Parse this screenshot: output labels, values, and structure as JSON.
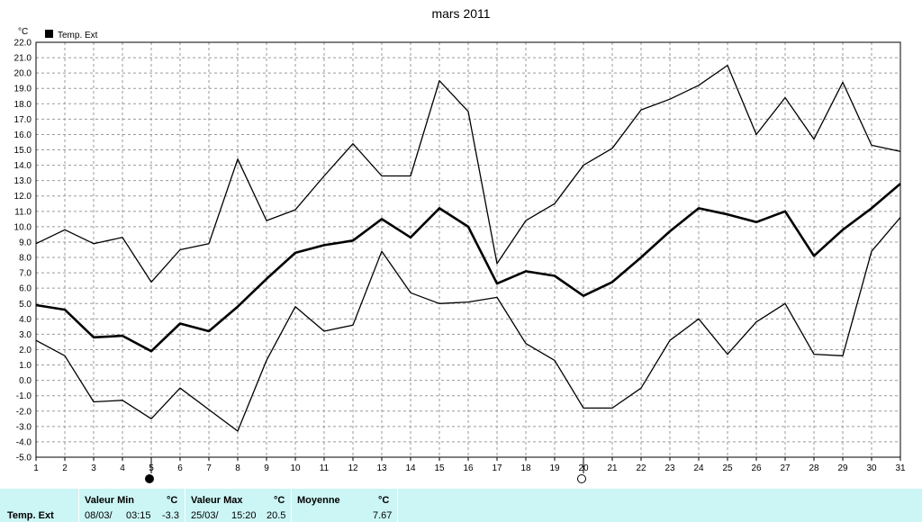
{
  "chart_data": {
    "type": "line",
    "title": "mars 2011",
    "unit_label": "°C",
    "legend": {
      "label": "Temp. Ext",
      "color": "#000000",
      "placement": "top-left"
    },
    "grid": true,
    "ylim": [
      -5.0,
      22.0
    ],
    "y_ticks": [
      "22.0",
      "21.0",
      "20.0",
      "19.0",
      "18.0",
      "17.0",
      "16.0",
      "15.0",
      "14.0",
      "13.0",
      "12.0",
      "11.0",
      "10.0",
      "9.0",
      "8.0",
      "7.0",
      "6.0",
      "5.0",
      "4.0",
      "3.0",
      "2.0",
      "1.0",
      "0.0",
      "-1.0",
      "-2.0",
      "-3.0",
      "-4.0",
      "-5.0"
    ],
    "x": [
      1,
      2,
      3,
      4,
      5,
      6,
      7,
      8,
      9,
      10,
      11,
      12,
      13,
      14,
      15,
      16,
      17,
      18,
      19,
      20,
      21,
      22,
      23,
      24,
      25,
      26,
      27,
      28,
      29,
      30,
      31
    ],
    "series": [
      {
        "role": "max",
        "values": [
          8.9,
          9.8,
          8.9,
          9.3,
          6.4,
          8.5,
          8.9,
          14.4,
          10.4,
          11.1,
          13.3,
          15.4,
          13.3,
          13.3,
          19.5,
          17.5,
          7.6,
          10.4,
          11.5,
          14.0,
          15.1,
          17.6,
          18.3,
          19.2,
          20.5,
          16.0,
          18.4,
          15.7,
          19.4,
          15.3,
          14.9
        ]
      },
      {
        "role": "mean",
        "values": [
          4.9,
          4.6,
          2.8,
          2.9,
          1.9,
          3.7,
          3.2,
          4.8,
          6.6,
          8.3,
          8.8,
          9.1,
          10.5,
          9.3,
          11.2,
          10.0,
          6.3,
          7.1,
          6.8,
          5.5,
          6.4,
          8.0,
          9.7,
          11.2,
          10.8,
          10.3,
          11.0,
          8.1,
          9.8,
          11.2,
          12.8
        ]
      },
      {
        "role": "min",
        "values": [
          2.6,
          1.6,
          -1.4,
          -1.3,
          -2.5,
          -0.5,
          -1.9,
          -3.3,
          1.3,
          4.8,
          3.2,
          3.6,
          8.4,
          5.7,
          5.0,
          5.1,
          5.4,
          2.4,
          1.3,
          -1.8,
          -1.8,
          -0.5,
          2.6,
          4.0,
          1.7,
          3.8,
          5.0,
          1.7,
          1.6,
          8.4,
          10.6
        ]
      }
    ],
    "moon_phases": [
      {
        "day": 5,
        "phase": "new"
      },
      {
        "day": 20,
        "phase": "full"
      }
    ]
  },
  "summary": {
    "row_label": "Temp. Ext",
    "min_header": "Valeur Min",
    "max_header": "Valeur Max",
    "mean_header": "Moyenne",
    "unit": "°C",
    "min_date": "08/03/",
    "min_time": "03:15",
    "min_value": "-3.3",
    "max_date": "25/03/",
    "max_time": "15:20",
    "max_value": "20.5",
    "mean_value": "7.67"
  }
}
